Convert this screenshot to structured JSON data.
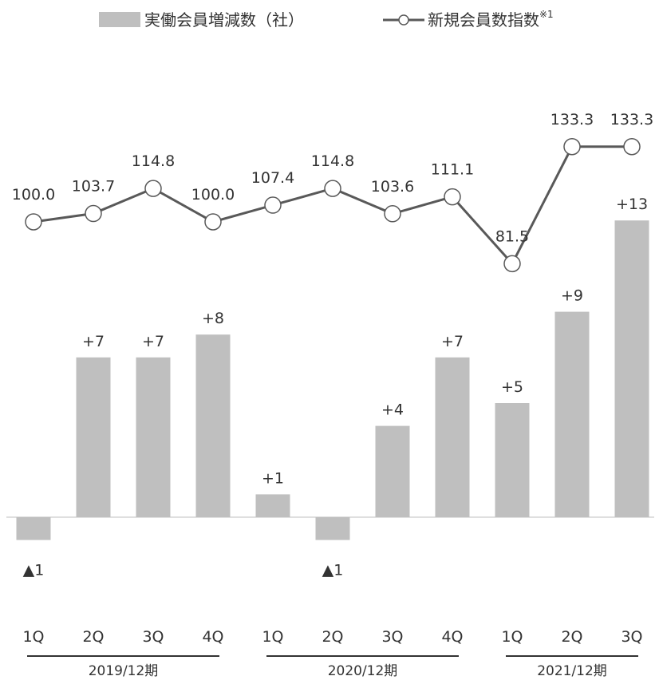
{
  "chart_data": {
    "type": "bar",
    "categories": [
      "1Q",
      "2Q",
      "3Q",
      "4Q",
      "1Q",
      "2Q",
      "3Q",
      "4Q",
      "1Q",
      "2Q",
      "3Q"
    ],
    "groups": [
      {
        "label": "2019/12期",
        "start": 0,
        "end": 3
      },
      {
        "label": "2020/12期",
        "start": 4,
        "end": 7
      },
      {
        "label": "2021/12期",
        "start": 8,
        "end": 10
      }
    ],
    "series": [
      {
        "name": "実働会員増減数（社）",
        "type": "bar",
        "values": [
          -1,
          7,
          7,
          8,
          1,
          -1,
          4,
          7,
          5,
          9,
          13
        ],
        "labels": [
          "▲1",
          "+7",
          "+7",
          "+8",
          "+1",
          "▲1",
          "+4",
          "+7",
          "+5",
          "+9",
          "+13"
        ],
        "color": "#bfbfbf"
      },
      {
        "name": "新規会員数指数",
        "name_sup": "※1",
        "type": "line",
        "values": [
          100.0,
          103.7,
          114.8,
          100.0,
          107.4,
          114.8,
          103.6,
          111.1,
          81.5,
          133.3,
          133.3
        ],
        "labels": [
          "100.0",
          "103.7",
          "114.8",
          "100.0",
          "107.4",
          "114.8",
          "103.6",
          "111.1",
          "81.5",
          "133.3",
          "133.3"
        ],
        "color": "#595959"
      }
    ],
    "legend_position": "top",
    "grid": false
  }
}
